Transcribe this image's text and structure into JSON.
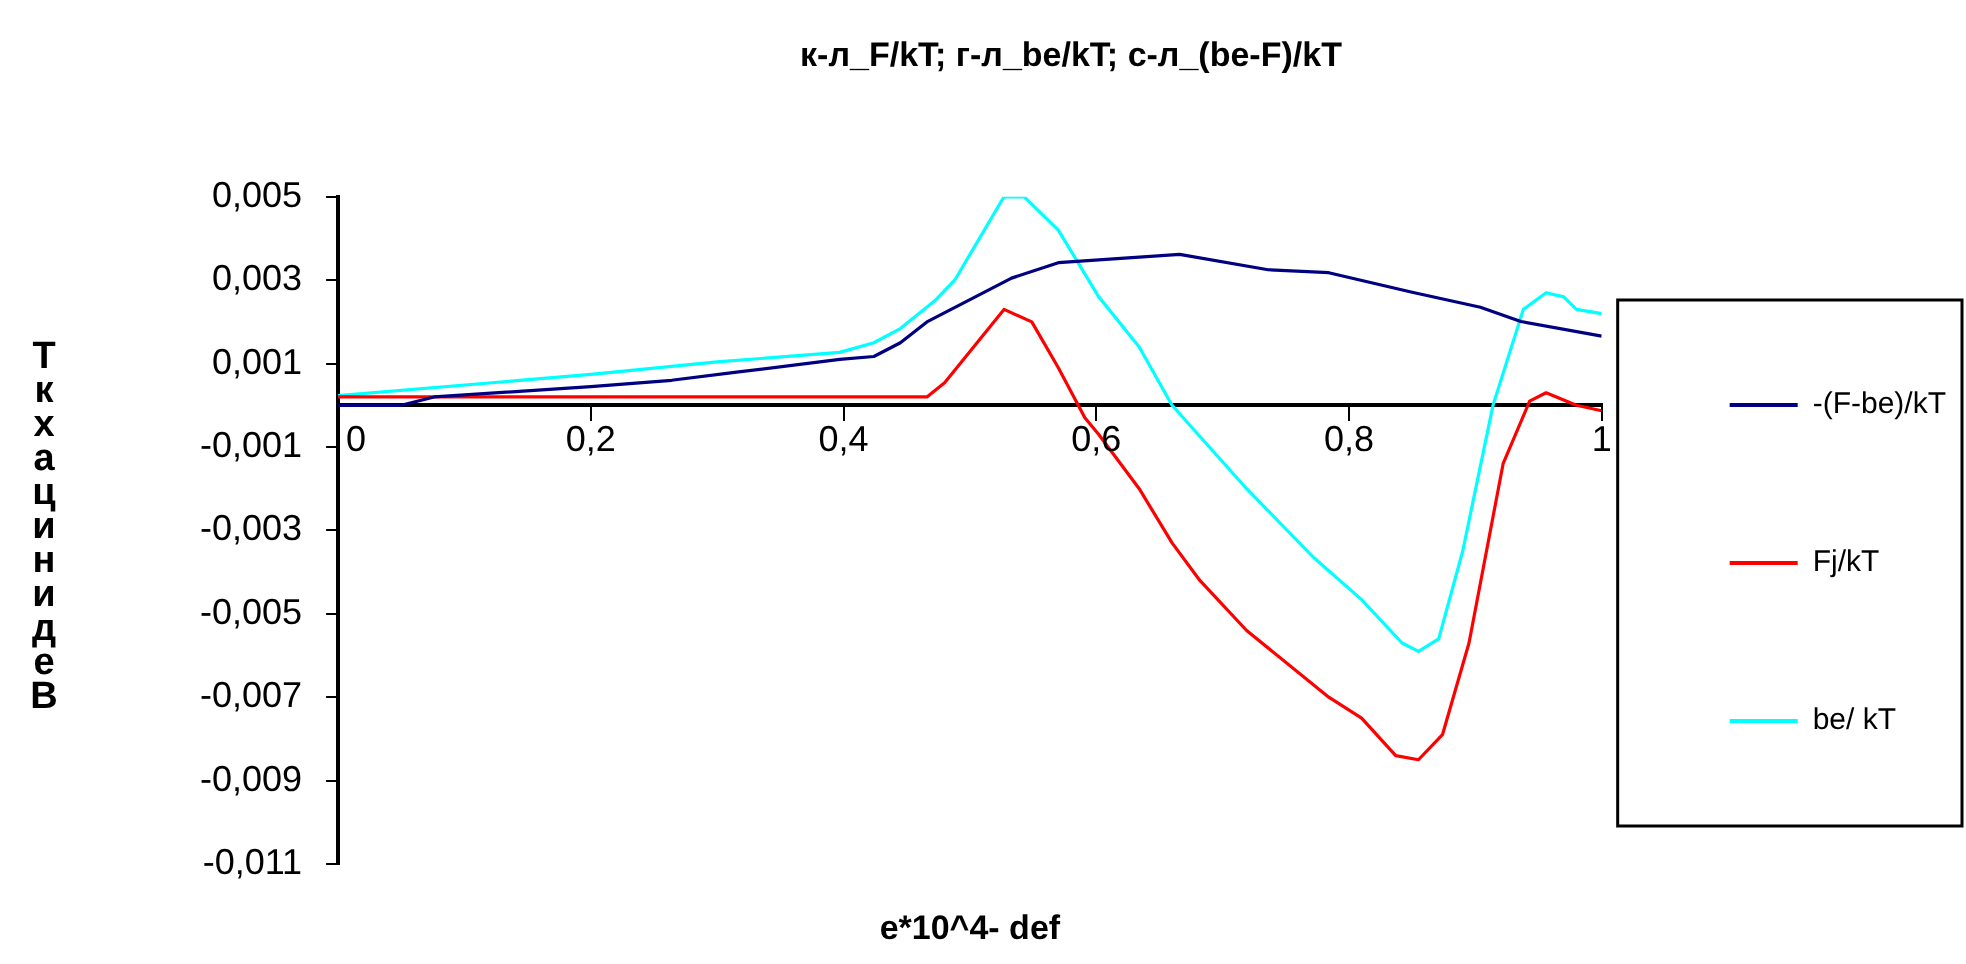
{
  "chart_data": {
    "type": "line",
    "title": "к-л_F/kT; г-л_be/kT; с-л_(be-F)/kT",
    "xlabel": "e*10^4- def",
    "ylabel": "ТкхацинидеВ",
    "xlim": [
      0,
      1
    ],
    "xticks": [
      0,
      {
        "value": 0.2,
        "label": "0,2"
      },
      {
        "value": 0.4,
        "label": "0,4"
      },
      {
        "value": 0.6,
        "label": "0,6"
      },
      {
        "value": 0.8,
        "label": "0,8"
      },
      1
    ],
    "ylim": [
      -0.011,
      0.005
    ],
    "yticks": [
      {
        "value": -0.011,
        "label": "-0,011"
      },
      {
        "value": -0.009,
        "label": "-0,009"
      },
      {
        "value": -0.007,
        "label": "-0,007"
      },
      {
        "value": -0.005,
        "label": "-0,005"
      },
      {
        "value": -0.003,
        "label": "-0,003"
      },
      {
        "value": -0.001,
        "label": "-0,001"
      },
      {
        "value": 0.001,
        "label": "0,001"
      },
      {
        "value": 0.003,
        "label": "0,003"
      },
      {
        "value": 0.005,
        "label": "0,005"
      }
    ],
    "grid": false,
    "legend": "right",
    "marker": "none",
    "line_style": "solid",
    "series": [
      {
        "name": "-(F-be)/kT",
        "color": "#000080",
        "x": [
          0,
          0.05,
          0.076,
          0.2,
          0.264,
          0.317,
          0.397,
          0.424,
          0.445,
          0.466,
          0.533,
          0.57,
          0.666,
          0.736,
          0.784,
          0.85,
          0.904,
          0.936,
          1.0
        ],
        "values": [
          0,
          0,
          0.0002,
          0.00045,
          0.0006,
          0.0008,
          0.0011,
          0.00117,
          0.0015,
          0.002,
          0.00305,
          0.00342,
          0.00362,
          0.00325,
          0.00318,
          0.00271,
          0.00235,
          0.00201,
          0.00166
        ]
      },
      {
        "name": "Fj/kT",
        "color": "#ff0000",
        "x": [
          0,
          0.466,
          0.48,
          0.527,
          0.549,
          0.57,
          0.591,
          0.602,
          0.634,
          0.66,
          0.682,
          0.719,
          0.784,
          0.81,
          0.837,
          0.855,
          0.874,
          0.895,
          0.922,
          0.943,
          0.956,
          0.98,
          1.0
        ],
        "values": [
          0.0002,
          0.0002,
          0.00054,
          0.0023,
          0.002,
          0.0009,
          -0.0003,
          -0.0007,
          -0.002,
          -0.0033,
          -0.0042,
          -0.0054,
          -0.007,
          -0.0075,
          -0.0084,
          -0.0085,
          -0.0079,
          -0.0057,
          -0.0014,
          0.0001,
          0.0003,
          0,
          -0.00013
        ]
      },
      {
        "name": "be/ kT",
        "color": "#00ffff",
        "x": [
          0,
          0.2,
          0.3,
          0.397,
          0.424,
          0.445,
          0.472,
          0.488,
          0.527,
          0.543,
          0.57,
          0.602,
          0.634,
          0.66,
          0.719,
          0.772,
          0.81,
          0.842,
          0.855,
          0.871,
          0.89,
          0.914,
          0.938,
          0.956,
          0.97,
          0.98,
          1.0
        ],
        "values": [
          0.00023,
          0.00074,
          0.00104,
          0.00127,
          0.0015,
          0.00184,
          0.0025,
          0.003,
          0.005,
          0.005,
          0.0042,
          0.0026,
          0.0014,
          0,
          -0.002,
          -0.00365,
          -0.00466,
          -0.0057,
          -0.0059,
          -0.0056,
          -0.0035,
          0,
          0.0023,
          0.0027,
          0.0026,
          0.0023,
          0.0022
        ]
      }
    ]
  }
}
